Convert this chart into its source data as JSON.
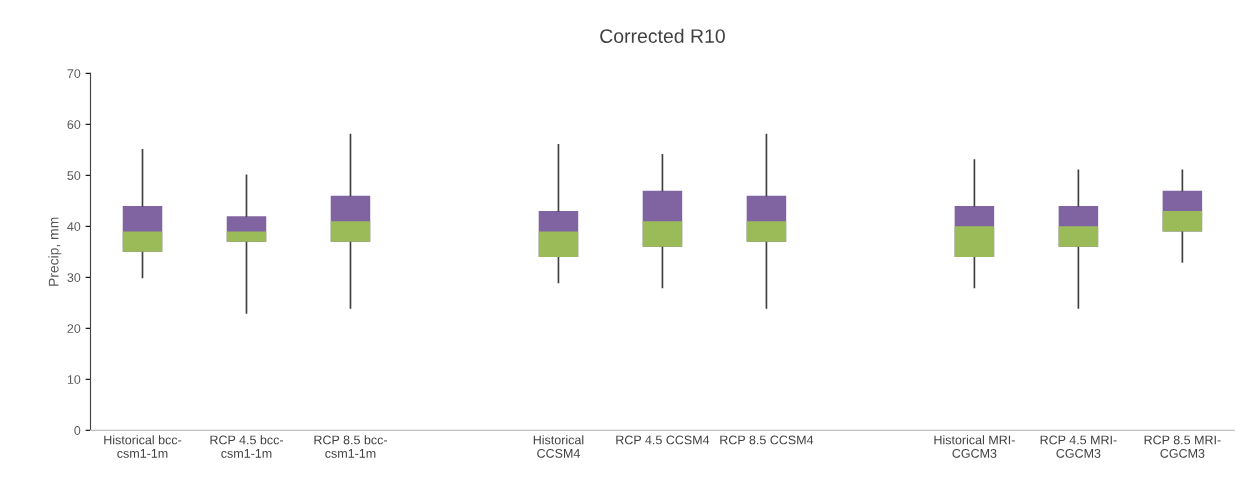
{
  "chart_data": {
    "type": "box",
    "title": "Corrected R10",
    "ylabel": "Precip, mm",
    "categories": [
      "Historical bcc-\ncsm1-1m",
      "RCP 4.5 bcc-\ncsm1-1m",
      "RCP 8.5 bcc-\ncsm1-1m",
      null,
      "Historical\nCCSM4",
      "RCP 4.5 CCSM4",
      "RCP 8.5 CCSM4",
      null,
      "Historical MRI-\nCGCM3",
      "RCP 4.5 MRI-\nCGCM3",
      "RCP 8.5 MRI-\nCGCM3"
    ],
    "series": [
      {
        "color": "#8064a2",
        "colors": [
          "#9bbb59",
          "#9bbb59",
          "#9bbb59",
          null,
          "#9bbb59",
          "#9bbb59",
          "#9bbb59",
          null,
          "#9bbb59",
          "#9bbb59",
          "#9bbb59"
        ],
        "boxes": [
          {
            "low": 30,
            "q1": 35,
            "median": 39,
            "q3": 44,
            "high": 55
          },
          {
            "low": 23,
            "q1": 37,
            "median": 39,
            "q3": 42,
            "high": 50
          },
          {
            "low": 24,
            "q1": 37,
            "median": 41,
            "q3": 46,
            "high": 58
          },
          null,
          {
            "low": 29,
            "q1": 34,
            "median": 39,
            "q3": 43,
            "high": 56
          },
          {
            "low": 28,
            "q1": 36,
            "median": 41,
            "q3": 47,
            "high": 54
          },
          {
            "low": 24,
            "q1": 37,
            "median": 41,
            "q3": 46,
            "high": 58
          },
          null,
          {
            "low": 28,
            "q1": 34,
            "median": 40,
            "q3": 44,
            "high": 53
          },
          {
            "low": 24,
            "q1": 36,
            "median": 40,
            "q3": 44,
            "high": 51
          },
          {
            "low": 33,
            "q1": 39,
            "median": 43,
            "q3": 47,
            "high": 51
          }
        ]
      }
    ],
    "ylim": [
      0,
      70
    ],
    "yticks": [
      0,
      10,
      20,
      30,
      40,
      50,
      60,
      70
    ],
    "grid": false,
    "legend": false
  }
}
